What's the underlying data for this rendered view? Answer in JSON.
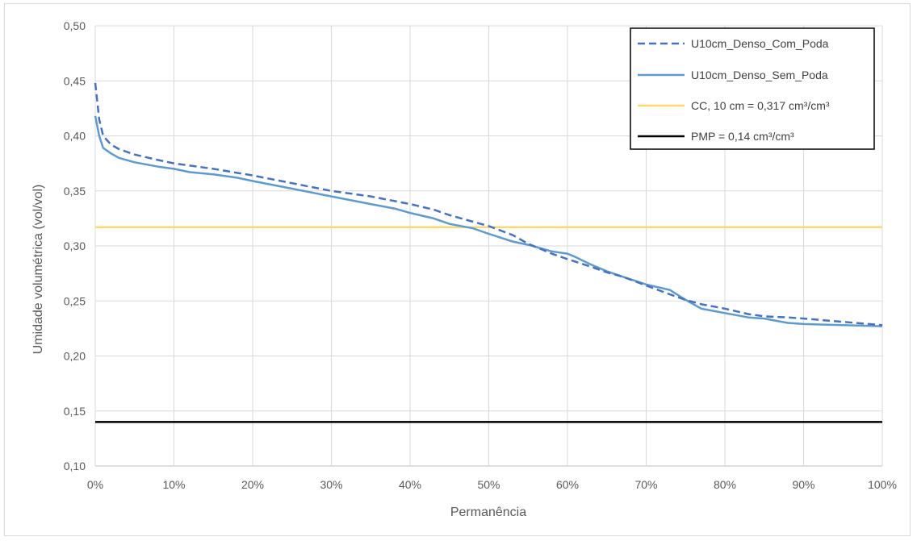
{
  "chart_data": {
    "type": "line",
    "title": "",
    "xlabel": "Permanência",
    "ylabel": "Umidade volumétrica (vol/vol)",
    "xlim": [
      0,
      100
    ],
    "ylim": [
      0.1,
      0.5
    ],
    "x_tick_labels": [
      "0%",
      "10%",
      "20%",
      "30%",
      "40%",
      "50%",
      "60%",
      "70%",
      "80%",
      "90%",
      "100%"
    ],
    "y_tick_labels": [
      "0,10",
      "0,15",
      "0,20",
      "0,25",
      "0,30",
      "0,35",
      "0,40",
      "0,45",
      "0,50"
    ],
    "grid": "vertical and horizontal",
    "legend_position": "top-right",
    "series": [
      {
        "name": "U10cm_Denso_Com_Poda",
        "style": "dashed",
        "color": "#4472c4",
        "x": [
          0,
          0.5,
          1,
          2,
          3,
          5,
          8,
          10,
          15,
          20,
          25,
          30,
          35,
          40,
          43,
          45,
          48,
          50,
          53,
          55,
          58,
          60,
          63,
          65,
          67,
          70,
          73,
          75,
          77,
          80,
          83,
          85,
          88,
          90,
          95,
          100
        ],
        "y": [
          0.448,
          0.415,
          0.4,
          0.392,
          0.388,
          0.383,
          0.378,
          0.375,
          0.37,
          0.364,
          0.357,
          0.35,
          0.345,
          0.338,
          0.333,
          0.328,
          0.322,
          0.318,
          0.31,
          0.302,
          0.293,
          0.288,
          0.281,
          0.276,
          0.272,
          0.264,
          0.256,
          0.251,
          0.247,
          0.243,
          0.238,
          0.236,
          0.235,
          0.234,
          0.231,
          0.228
        ]
      },
      {
        "name": "U10cm_Denso_Sem_Poda",
        "style": "solid",
        "color": "#5b9bd5",
        "x": [
          0,
          0.5,
          1,
          2,
          3,
          5,
          8,
          10,
          12,
          15,
          18,
          20,
          25,
          30,
          35,
          38,
          40,
          43,
          45,
          48,
          50,
          53,
          55,
          58,
          60,
          61,
          63,
          65,
          67,
          70,
          73,
          75,
          77,
          80,
          83,
          85,
          88,
          90,
          95,
          100
        ],
        "y": [
          0.418,
          0.4,
          0.389,
          0.384,
          0.38,
          0.376,
          0.372,
          0.37,
          0.367,
          0.365,
          0.362,
          0.359,
          0.352,
          0.345,
          0.338,
          0.334,
          0.33,
          0.325,
          0.32,
          0.316,
          0.311,
          0.304,
          0.301,
          0.295,
          0.293,
          0.29,
          0.283,
          0.277,
          0.272,
          0.265,
          0.26,
          0.251,
          0.243,
          0.239,
          0.235,
          0.234,
          0.23,
          0.229,
          0.228,
          0.227
        ]
      },
      {
        "name": "CC, 10 cm = 0,317 cm³/cm³",
        "style": "solid",
        "color": "#ffd966",
        "x": [
          0,
          100
        ],
        "y": [
          0.317,
          0.317
        ]
      },
      {
        "name": "PMP = 0,14 cm³/cm³",
        "style": "solid",
        "color": "#000000",
        "x": [
          0,
          100
        ],
        "y": [
          0.14,
          0.14
        ]
      }
    ]
  }
}
